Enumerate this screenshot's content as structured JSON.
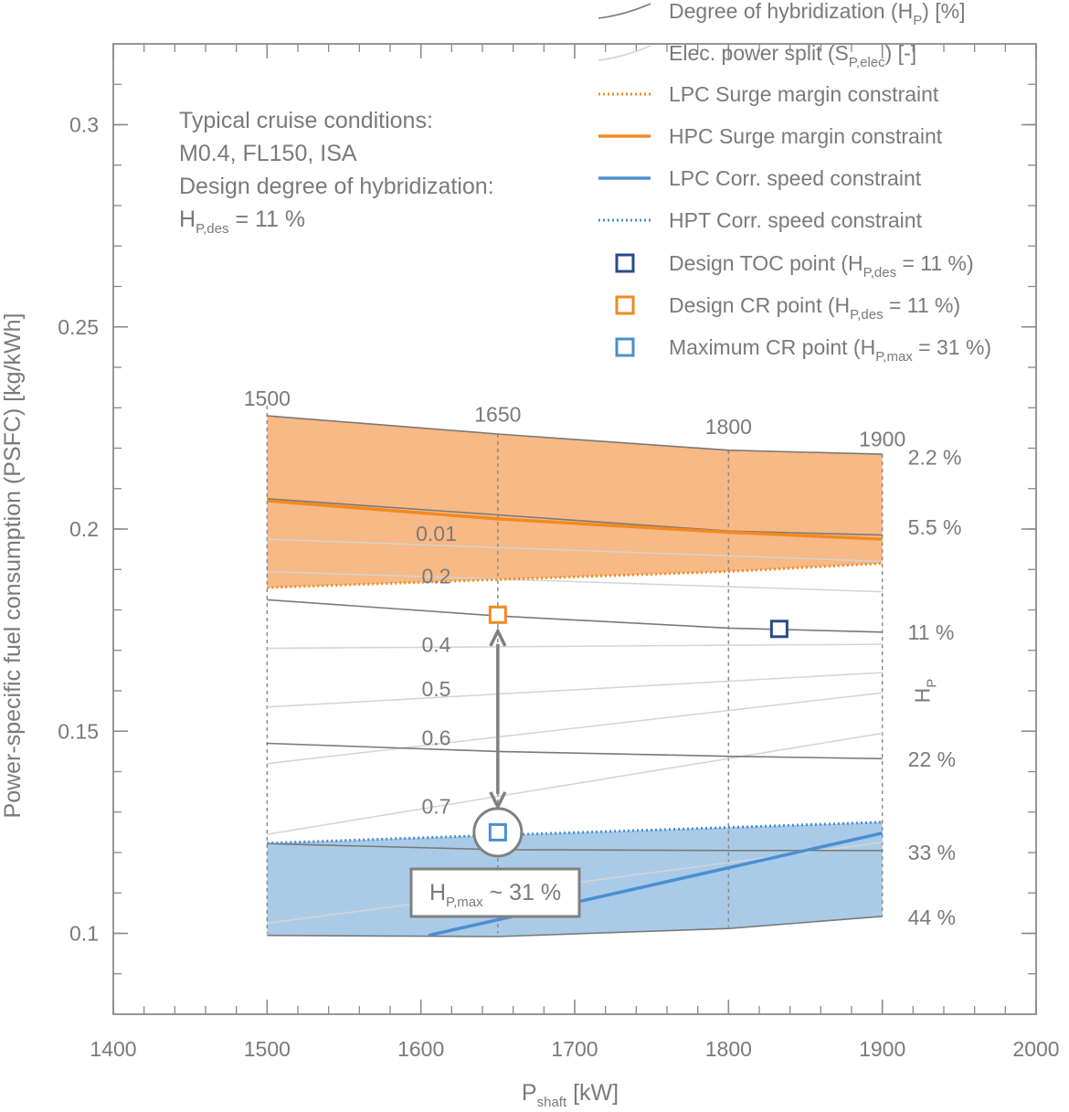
{
  "chart_data": {
    "type": "line",
    "xlabel": "P",
    "xlabel_sub": "shaft",
    "xlabel_unit": " [kW]",
    "ylabel": "Power-specific fuel consumption (PSFC) [kg/kWh]",
    "xlim": [
      1400,
      2000
    ],
    "ylim": [
      0.08,
      0.32
    ],
    "xticks": [
      "1400",
      "1500",
      "1600",
      "1700",
      "1800",
      "1900",
      "2000"
    ],
    "yticks": [
      "0.1",
      "0.15",
      "0.2",
      "0.25",
      "0.3"
    ],
    "ytick_values": [
      0.1,
      0.15,
      0.2,
      0.25,
      0.3
    ],
    "annotation_lines": [
      "Typical cruise conditions:",
      "M0.4, FL150, ISA",
      "Design degree of hybridization:"
    ],
    "annotation_hp_main": "H",
    "annotation_hp_sub": "P,des",
    "annotation_hp_value": " = 11 %",
    "shaft_power_labels": [
      {
        "text": "1500",
        "x": 1500,
        "y": 0.2305
      },
      {
        "text": "1650",
        "x": 1650,
        "y": 0.2265
      },
      {
        "text": "1800",
        "x": 1800,
        "y": 0.2235
      },
      {
        "text": "1900",
        "x": 1900,
        "y": 0.2205
      }
    ],
    "hybridization_lines": [
      {
        "label": "2.2 %",
        "label_y": 0.2177,
        "x": [
          1500,
          1650,
          1800,
          1900
        ],
        "y": [
          0.228,
          0.2235,
          0.2195,
          0.2185
        ]
      },
      {
        "label": "5.5 %",
        "label_y": 0.2005,
        "x": [
          1500,
          1650,
          1800,
          1900
        ],
        "y": [
          0.2075,
          0.2035,
          0.1995,
          0.1985
        ]
      },
      {
        "label": "11 %",
        "label_y": 0.1745,
        "x": [
          1500,
          1650,
          1800,
          1900
        ],
        "y": [
          0.1825,
          0.1785,
          0.1755,
          0.1745
        ]
      },
      {
        "label": "22 %",
        "label_y": 0.143,
        "x": [
          1500,
          1650,
          1800,
          1900
        ],
        "y": [
          0.147,
          0.145,
          0.1438,
          0.1432
        ]
      },
      {
        "label": "33 %",
        "label_y": 0.12,
        "x": [
          1500,
          1650,
          1800,
          1900
        ],
        "y": [
          0.1222,
          0.1207,
          0.1205,
          0.1205
        ]
      },
      {
        "label": "44 %",
        "label_y": 0.104,
        "x": [
          1500,
          1650,
          1800,
          1900
        ],
        "y": [
          0.0995,
          0.0992,
          0.1012,
          0.1042
        ]
      }
    ],
    "hp_axis_label_main": "H",
    "hp_axis_label_sub": "P",
    "power_split_lines": [
      {
        "label": "0.01",
        "label_x": 1610,
        "label_y": 0.198,
        "x": [
          1500,
          1900
        ],
        "y": [
          0.1975,
          0.192
        ]
      },
      {
        "label": "0.2",
        "label_x": 1610,
        "label_y": 0.1875,
        "x": [
          1500,
          1900
        ],
        "y": [
          0.1895,
          0.1845
        ]
      },
      {
        "label": "0.4",
        "label_x": 1610,
        "label_y": 0.1705,
        "x": [
          1500,
          1900
        ],
        "y": [
          0.1705,
          0.1715
        ]
      },
      {
        "label": "0.5",
        "label_x": 1610,
        "label_y": 0.1595,
        "x": [
          1500,
          1900
        ],
        "y": [
          0.156,
          0.1645
        ]
      },
      {
        "label": "0.6",
        "label_x": 1610,
        "label_y": 0.1475,
        "x": [
          1500,
          1900
        ],
        "y": [
          0.142,
          0.1595
        ]
      },
      {
        "label": "0.7",
        "label_x": 1610,
        "label_y": 0.1305,
        "x": [
          1500,
          1900
        ],
        "y": [
          0.1245,
          0.1495
        ]
      },
      {
        "label": "",
        "label_x": 1610,
        "label_y": 0.11,
        "x": [
          1500,
          1900
        ],
        "y": [
          0.1025,
          0.1225
        ]
      }
    ],
    "lpc_surge": {
      "x": [
        1500,
        1650,
        1800,
        1900
      ],
      "y": [
        0.1855,
        0.1875,
        0.1895,
        0.1915
      ]
    },
    "hpc_surge": {
      "x": [
        1500,
        1650,
        1800,
        1900
      ],
      "y": [
        0.207,
        0.2025,
        0.1992,
        0.1975
      ]
    },
    "lpc_speed": {
      "x": [
        1605,
        1900
      ],
      "y": [
        0.0995,
        0.1248
      ]
    },
    "hpt_speed": {
      "x": [
        1500,
        1650,
        1800,
        1900
      ],
      "y": [
        0.1223,
        0.1243,
        0.1262,
        0.1275
      ]
    },
    "orange_region": {
      "top": {
        "x": [
          1500,
          1650,
          1800,
          1900
        ],
        "y": [
          0.228,
          0.2235,
          0.2195,
          0.2185
        ]
      },
      "bottom": {
        "x": [
          1500,
          1650,
          1800,
          1900
        ],
        "y": [
          0.1855,
          0.1875,
          0.1895,
          0.1915
        ]
      }
    },
    "blue_region": {
      "top": {
        "x": [
          1500,
          1650,
          1800,
          1900
        ],
        "y": [
          0.1223,
          0.1243,
          0.1262,
          0.1275
        ]
      },
      "bottom": {
        "x": [
          1500,
          1650,
          1800,
          1900
        ],
        "y": [
          0.0995,
          0.0992,
          0.1012,
          0.1042
        ]
      }
    },
    "vertical_guides": [
      {
        "x": 1500,
        "y_top": 0.2305,
        "y_bottom": 0.1
      },
      {
        "x": 1650,
        "y_top": 0.2235,
        "y_bottom": 0.1
      },
      {
        "x": 1800,
        "y_top": 0.2195,
        "y_bottom": 0.1015
      },
      {
        "x": 1900,
        "y_top": 0.2185,
        "y_bottom": 0.1042
      }
    ],
    "points": {
      "design_toc": {
        "x": 1833,
        "y": 0.1753
      },
      "design_cr": {
        "x": 1650,
        "y": 0.1788
      },
      "maximum_cr": {
        "x": 1650,
        "y": 0.125
      }
    },
    "callout": {
      "main": "H",
      "sub": "P,max",
      "rest": " ~ 31 %"
    },
    "colors": {
      "orange": "#f28a1e",
      "orange_fill": "#f7b985",
      "blue": "#4a8fd1",
      "blue_fill": "#a9cbe8",
      "navy": "#2b4a8b",
      "gray_line": "#7a7a7a",
      "light_line": "#d4d4d4",
      "arrow": "#808080",
      "axis": "#8a8a8a"
    },
    "legend": [
      {
        "key": "hp",
        "label_main": "Degree of hybridization (H",
        "label_sub": "P",
        "label_rest": ") [%]",
        "style": "gray-line"
      },
      {
        "key": "split",
        "label_main": "Elec. power split (S",
        "label_sub": "P,elec",
        "label_rest": ") [-]",
        "style": "light-line"
      },
      {
        "key": "lpc_surge",
        "label_main": "LPC Surge margin constraint",
        "style": "orange-dotted"
      },
      {
        "key": "hpc_surge",
        "label_main": "HPC Surge margin constraint",
        "style": "orange-solid"
      },
      {
        "key": "lpc_speed",
        "label_main": "LPC Corr. speed constraint",
        "style": "blue-solid"
      },
      {
        "key": "hpt_speed",
        "label_main": "HPT Corr. speed constraint",
        "style": "blue-dotted"
      },
      {
        "key": "toc",
        "label_main": "Design TOC point (H",
        "label_sub": "P,des",
        "label_rest": " = 11 %)",
        "style": "navy-square"
      },
      {
        "key": "cr",
        "label_main": "Design CR point (H",
        "label_sub": "P,des",
        "label_rest": " = 11 %)",
        "style": "orange-square"
      },
      {
        "key": "max",
        "label_main": "Maximum CR point (H",
        "label_sub": "P,max",
        "label_rest": " = 31 %)",
        "style": "blue-square"
      }
    ]
  }
}
